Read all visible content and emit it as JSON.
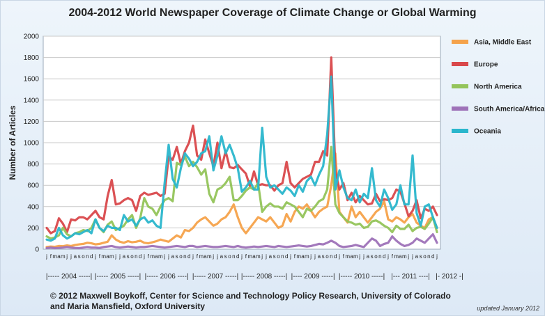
{
  "chart_data": {
    "type": "line",
    "title": "2004-2012 World Newspaper Coverage of Climate Change or Global Warming",
    "ylabel": "Number of Articles",
    "xlabel": "",
    "ylim": [
      0,
      2000
    ],
    "yticks": [
      "0",
      "200",
      "400",
      "600",
      "800",
      "1000",
      "1200",
      "1400",
      "1600",
      "1800",
      "2000"
    ],
    "grid": true,
    "legend_position": "right",
    "month_labels": [
      "j",
      "f",
      "m",
      "a",
      "m",
      "j",
      "j",
      "a",
      "s",
      "o",
      "n",
      "d"
    ],
    "year_labels": [
      "|----- 2004 -----|",
      "|----- 2005 -----|",
      "|----- 2006 ----|",
      "|----- 2007 -----|",
      "|----- 2008 -----|",
      "|---- 2009 -----|",
      "|----- 2010 -----|",
      "|--- 2011 ----|",
      "|- 2012 -|"
    ],
    "x": [
      "2004-01",
      "2004-02",
      "2004-03",
      "2004-04",
      "2004-05",
      "2004-06",
      "2004-07",
      "2004-08",
      "2004-09",
      "2004-10",
      "2004-11",
      "2004-12",
      "2005-01",
      "2005-02",
      "2005-03",
      "2005-04",
      "2005-05",
      "2005-06",
      "2005-07",
      "2005-08",
      "2005-09",
      "2005-10",
      "2005-11",
      "2005-12",
      "2006-01",
      "2006-02",
      "2006-03",
      "2006-04",
      "2006-05",
      "2006-06",
      "2006-07",
      "2006-08",
      "2006-09",
      "2006-10",
      "2006-11",
      "2006-12",
      "2007-01",
      "2007-02",
      "2007-03",
      "2007-04",
      "2007-05",
      "2007-06",
      "2007-07",
      "2007-08",
      "2007-09",
      "2007-10",
      "2007-11",
      "2007-12",
      "2008-01",
      "2008-02",
      "2008-03",
      "2008-04",
      "2008-05",
      "2008-06",
      "2008-07",
      "2008-08",
      "2008-09",
      "2008-10",
      "2008-11",
      "2008-12",
      "2009-01",
      "2009-02",
      "2009-03",
      "2009-04",
      "2009-05",
      "2009-06",
      "2009-07",
      "2009-08",
      "2009-09",
      "2009-10",
      "2009-11",
      "2009-12",
      "2010-01",
      "2010-02",
      "2010-03",
      "2010-04",
      "2010-05",
      "2010-06",
      "2010-07",
      "2010-08",
      "2010-09",
      "2010-10",
      "2010-11",
      "2010-12",
      "2011-01",
      "2011-02",
      "2011-03",
      "2011-04",
      "2011-05",
      "2011-06",
      "2011-07",
      "2011-08",
      "2011-09",
      "2011-10",
      "2011-11",
      "2011-12",
      "2012-01"
    ],
    "series": [
      {
        "name": "Asia, Middle East",
        "color": "#f5a24a",
        "values": [
          20,
          25,
          22,
          30,
          28,
          35,
          30,
          40,
          45,
          50,
          60,
          55,
          45,
          50,
          60,
          70,
          130,
          90,
          70,
          60,
          75,
          65,
          70,
          80,
          60,
          55,
          65,
          75,
          90,
          80,
          70,
          100,
          130,
          110,
          180,
          170,
          200,
          250,
          280,
          300,
          260,
          220,
          240,
          280,
          300,
          350,
          420,
          300,
          200,
          150,
          200,
          250,
          300,
          280,
          260,
          300,
          250,
          200,
          220,
          330,
          260,
          350,
          400,
          380,
          420,
          360,
          300,
          350,
          380,
          400,
          600,
          900,
          350,
          300,
          250,
          400,
          300,
          350,
          300,
          250,
          300,
          350,
          380,
          450,
          280,
          260,
          300,
          280,
          250,
          300,
          330,
          250,
          220,
          200,
          280,
          300,
          200
        ]
      },
      {
        "name": "Europe",
        "color": "#d9484b",
        "values": [
          200,
          150,
          170,
          290,
          240,
          160,
          280,
          270,
          300,
          300,
          280,
          320,
          360,
          300,
          280,
          500,
          650,
          420,
          430,
          460,
          480,
          460,
          360,
          500,
          530,
          510,
          520,
          530,
          500,
          520,
          870,
          840,
          960,
          800,
          920,
          1000,
          1160,
          880,
          840,
          1030,
          900,
          780,
          1000,
          760,
          920,
          770,
          760,
          790,
          750,
          710,
          590,
          730,
          600,
          610,
          600,
          600,
          550,
          600,
          620,
          820,
          620,
          580,
          620,
          660,
          680,
          700,
          820,
          820,
          920,
          880,
          1800,
          740,
          560,
          620,
          460,
          530,
          440,
          500,
          460,
          420,
          430,
          520,
          450,
          470,
          460,
          480,
          560,
          540,
          430,
          310,
          360,
          460,
          290,
          380,
          360,
          400,
          320
        ]
      },
      {
        "name": "North America",
        "color": "#94c45a",
        "values": [
          120,
          100,
          110,
          130,
          200,
          140,
          120,
          150,
          160,
          180,
          170,
          200,
          280,
          200,
          160,
          230,
          260,
          180,
          200,
          220,
          280,
          320,
          200,
          290,
          480,
          400,
          380,
          320,
          400,
          460,
          480,
          450,
          810,
          790,
          870,
          780,
          820,
          770,
          700,
          750,
          520,
          440,
          560,
          580,
          620,
          680,
          460,
          460,
          500,
          550,
          580,
          560,
          620,
          350,
          400,
          430,
          400,
          400,
          380,
          440,
          420,
          400,
          350,
          300,
          380,
          360,
          400,
          450,
          470,
          560,
          960,
          420,
          340,
          300,
          260,
          250,
          230,
          240,
          200,
          210,
          260,
          270,
          250,
          220,
          200,
          160,
          220,
          190,
          190,
          230,
          170,
          200,
          210,
          190,
          240,
          300,
          160
        ]
      },
      {
        "name": "South America/Africa",
        "color": "#9e72b8",
        "values": [
          10,
          15,
          10,
          12,
          15,
          20,
          15,
          12,
          10,
          15,
          20,
          15,
          15,
          12,
          20,
          25,
          30,
          20,
          15,
          20,
          25,
          20,
          15,
          20,
          20,
          25,
          30,
          25,
          20,
          15,
          20,
          25,
          30,
          25,
          20,
          30,
          30,
          20,
          25,
          30,
          25,
          20,
          20,
          25,
          30,
          25,
          20,
          30,
          20,
          15,
          20,
          25,
          20,
          25,
          30,
          25,
          20,
          30,
          25,
          20,
          25,
          30,
          35,
          30,
          25,
          30,
          40,
          50,
          45,
          60,
          80,
          60,
          30,
          20,
          25,
          30,
          40,
          30,
          20,
          60,
          100,
          80,
          30,
          50,
          60,
          120,
          80,
          50,
          30,
          40,
          60,
          100,
          80,
          60,
          100,
          140,
          60
        ]
      },
      {
        "name": "Oceania",
        "color": "#2ab6cc",
        "values": [
          90,
          80,
          100,
          200,
          130,
          100,
          120,
          150,
          140,
          160,
          180,
          150,
          280,
          200,
          170,
          220,
          200,
          200,
          180,
          320,
          260,
          280,
          220,
          280,
          300,
          250,
          270,
          220,
          200,
          620,
          980,
          660,
          580,
          760,
          900,
          850,
          780,
          820,
          900,
          920,
          1060,
          740,
          880,
          1060,
          900,
          980,
          880,
          760,
          540,
          580,
          640,
          560,
          560,
          1140,
          680,
          580,
          600,
          560,
          520,
          580,
          550,
          500,
          600,
          540,
          640,
          680,
          600,
          700,
          780,
          1080,
          1620,
          560,
          740,
          580,
          480,
          460,
          560,
          440,
          520,
          480,
          760,
          460,
          400,
          560,
          480,
          370,
          420,
          600,
          420,
          420,
          880,
          340,
          220,
          400,
          420,
          300,
          200
        ]
      }
    ]
  },
  "credit_line1": "© 2012 Maxwell Boykoff, Center for Science and Technology Policy Research, University of Colorado",
  "credit_line2": "and Maria Mansfield, Oxford University",
  "updated": "updated January 2012"
}
